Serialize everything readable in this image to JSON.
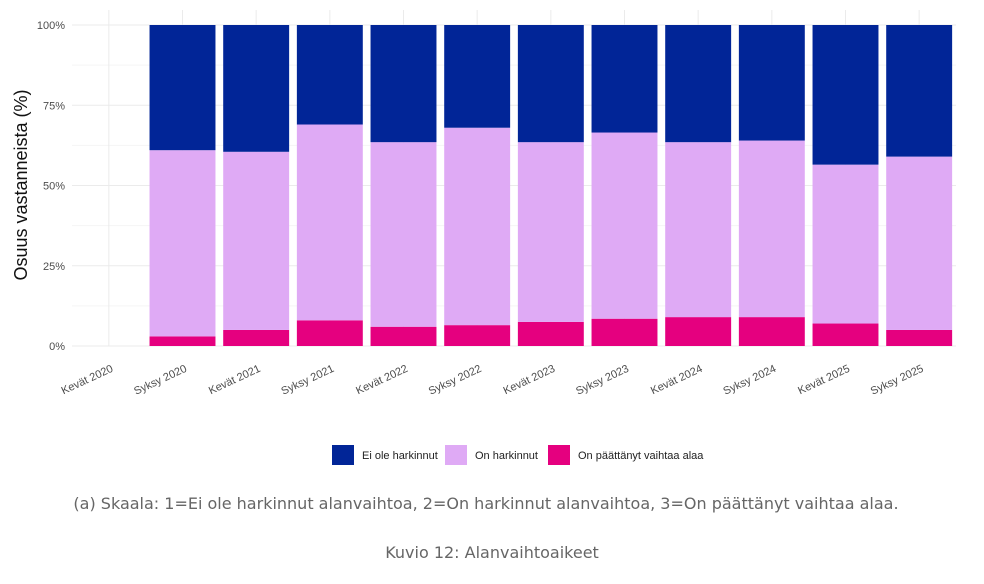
{
  "chart_data": {
    "type": "bar",
    "stacked": true,
    "categories": [
      "Kevät 2020",
      "Syksy 2020",
      "Kevät 2021",
      "Syksy 2021",
      "Kevät 2022",
      "Syksy 2022",
      "Kevät 2023",
      "Syksy 2023",
      "Kevät 2024",
      "Syksy 2024",
      "Kevät 2025",
      "Syksy 2025"
    ],
    "series": [
      {
        "name": "On päättänyt vaihtaa alaa",
        "color": "#e5007f",
        "values": [
          null,
          3,
          5,
          8,
          6,
          6.5,
          7.5,
          8.5,
          9,
          9,
          7,
          5
        ]
      },
      {
        "name": "On harkinnut",
        "color": "#dfaaf5",
        "values": [
          null,
          58,
          55.5,
          61,
          57.5,
          61.5,
          56,
          58,
          54.5,
          55,
          49.5,
          54
        ]
      },
      {
        "name": "Ei ole harkinnut",
        "color": "#012597",
        "values": [
          null,
          39,
          39.5,
          31,
          36.5,
          32,
          36.5,
          33.5,
          36.5,
          36,
          43.5,
          41
        ]
      }
    ],
    "legend_order": [
      "Ei ole harkinnut",
      "On harkinnut",
      "On päättänyt vaihtaa alaa"
    ],
    "ylabel": "Osuus vastanneista (%)",
    "xlabel": "",
    "ylim": [
      0,
      100
    ],
    "yticks": [
      0,
      25,
      50,
      75,
      100
    ],
    "ytick_labels": [
      "0%",
      "25%",
      "50%",
      "75%",
      "100%"
    ],
    "grid": true,
    "legend_position": "bottom"
  },
  "captions": {
    "sub": "(a) Skaala: 1=Ei ole harkinnut alanvaihtoa, 2=On harkinnut alanvaihtoa, 3=On päättänyt vaihtaa alaa.",
    "figure": "Kuvio 12: Alanvaihtoaikeet"
  }
}
